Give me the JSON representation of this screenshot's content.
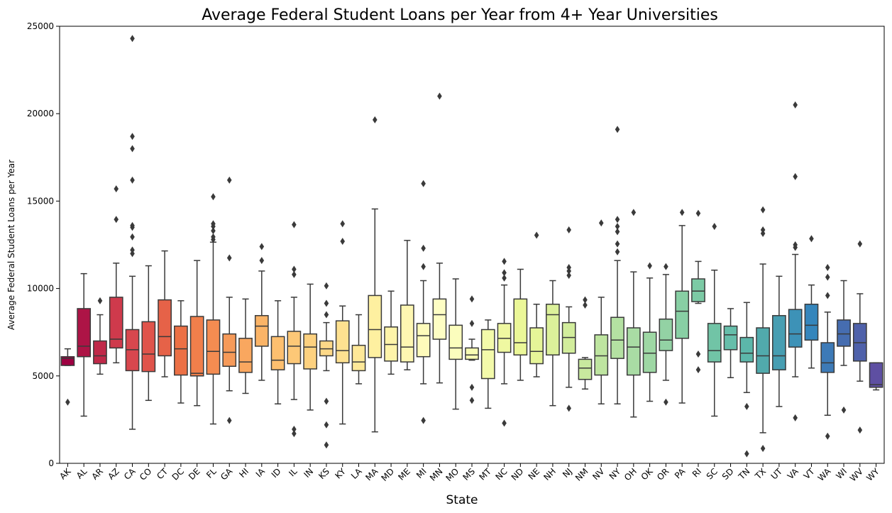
{
  "chart_data": {
    "type": "box",
    "title": "Average Federal Student Loans per Year from 4+ Year Universities",
    "xlabel": "State",
    "ylabel": "Average Federal Student Loans per Year",
    "ylim": [
      0,
      25000
    ],
    "yticks": [
      0,
      5000,
      10000,
      15000,
      20000,
      25000
    ],
    "palette": "Spectral",
    "categories": [
      "AK",
      "AL",
      "AR",
      "AZ",
      "CA",
      "CO",
      "CT",
      "DC",
      "DE",
      "FL",
      "GA",
      "HI",
      "IA",
      "ID",
      "IL",
      "IN",
      "KS",
      "KY",
      "LA",
      "MA",
      "MD",
      "ME",
      "MI",
      "MN",
      "MO",
      "MS",
      "MT",
      "NC",
      "ND",
      "NE",
      "NH",
      "NJ",
      "NM",
      "NV",
      "NY",
      "OH",
      "OK",
      "OR",
      "PA",
      "RI",
      "SC",
      "SD",
      "TN",
      "TX",
      "UT",
      "VA",
      "VT",
      "WA",
      "WI",
      "WV",
      "WY"
    ],
    "boxes": [
      {
        "state": "AK",
        "color": "#9e0142",
        "whislo": 5600,
        "q1": 5600,
        "med": 6000,
        "q3": 6100,
        "whishi": 6550,
        "fliers": [
          3500
        ]
      },
      {
        "state": "AL",
        "color": "#ad1446",
        "whislo": 2700,
        "q1": 6100,
        "med": 6700,
        "q3": 8850,
        "whishi": 10850,
        "fliers": []
      },
      {
        "state": "AR",
        "color": "#c02949",
        "whislo": 5100,
        "q1": 5700,
        "med": 6150,
        "q3": 7000,
        "whishi": 8500,
        "fliers": [
          9300
        ]
      },
      {
        "state": "AZ",
        "color": "#cf3a4c",
        "whislo": 5750,
        "q1": 6600,
        "med": 7100,
        "q3": 9500,
        "whishi": 11450,
        "fliers": [
          13950,
          15700
        ]
      },
      {
        "state": "CA",
        "color": "#d8474e",
        "whislo": 1950,
        "q1": 5300,
        "med": 6500,
        "q3": 7650,
        "whishi": 10700,
        "fliers": [
          12000,
          12200,
          12950,
          13500,
          13600,
          16200,
          18000,
          18700,
          24300
        ]
      },
      {
        "state": "CO",
        "color": "#e0544b",
        "whislo": 3600,
        "q1": 5250,
        "med": 6250,
        "q3": 8100,
        "whishi": 11300,
        "fliers": []
      },
      {
        "state": "CT",
        "color": "#e66248",
        "whislo": 4950,
        "q1": 6150,
        "med": 7250,
        "q3": 9350,
        "whishi": 12150,
        "fliers": []
      },
      {
        "state": "DC",
        "color": "#ec7045",
        "whislo": 3450,
        "q1": 5050,
        "med": 6550,
        "q3": 7850,
        "whishi": 9300,
        "fliers": []
      },
      {
        "state": "DE",
        "color": "#f07f4b",
        "whislo": 3300,
        "q1": 5000,
        "med": 5150,
        "q3": 8400,
        "whishi": 11600,
        "fliers": []
      },
      {
        "state": "FL",
        "color": "#f48c51",
        "whislo": 2250,
        "q1": 5100,
        "med": 6400,
        "q3": 8200,
        "whishi": 12650,
        "fliers": [
          12800,
          12950,
          13300,
          13550,
          13700,
          15250
        ]
      },
      {
        "state": "GA",
        "color": "#f69a59",
        "whislo": 4150,
        "q1": 5550,
        "med": 6350,
        "q3": 7400,
        "whishi": 9500,
        "fliers": [
          2450,
          11750,
          16200
        ]
      },
      {
        "state": "HI",
        "color": "#f9a75f",
        "whislo": 4000,
        "q1": 5200,
        "med": 5800,
        "q3": 7150,
        "whishi": 9400,
        "fliers": []
      },
      {
        "state": "IA",
        "color": "#fbb467",
        "whislo": 4750,
        "q1": 6700,
        "med": 7850,
        "q3": 8450,
        "whishi": 11000,
        "fliers": [
          11600,
          12400
        ]
      },
      {
        "state": "ID",
        "color": "#fdbf6f",
        "whislo": 3400,
        "q1": 5350,
        "med": 5900,
        "q3": 7250,
        "whishi": 9300,
        "fliers": []
      },
      {
        "state": "IL",
        "color": "#fdc877",
        "whislo": 3650,
        "q1": 5700,
        "med": 6700,
        "q3": 7550,
        "whishi": 9500,
        "fliers": [
          1700,
          1950,
          10800,
          11100,
          13650
        ]
      },
      {
        "state": "IN",
        "color": "#fdd17f",
        "whislo": 3050,
        "q1": 5400,
        "med": 6650,
        "q3": 7400,
        "whishi": 10250,
        "fliers": []
      },
      {
        "state": "KS",
        "color": "#fdd988",
        "whislo": 5300,
        "q1": 6150,
        "med": 6550,
        "q3": 7000,
        "whishi": 8050,
        "fliers": [
          1050,
          2200,
          3550,
          8500,
          9150,
          10150
        ]
      },
      {
        "state": "KY",
        "color": "#fee190",
        "whislo": 2250,
        "q1": 5750,
        "med": 6450,
        "q3": 8150,
        "whishi": 9000,
        "fliers": [
          12700,
          13700
        ]
      },
      {
        "state": "LA",
        "color": "#fee898",
        "whislo": 4550,
        "q1": 5300,
        "med": 5800,
        "q3": 6750,
        "whishi": 8500,
        "fliers": []
      },
      {
        "state": "MA",
        "color": "#fef0a0",
        "whislo": 1800,
        "q1": 6050,
        "med": 7650,
        "q3": 9600,
        "whishi": 14550,
        "fliers": [
          19650
        ]
      },
      {
        "state": "MD",
        "color": "#fef4a9",
        "whislo": 5100,
        "q1": 5850,
        "med": 6800,
        "q3": 7800,
        "whishi": 9850,
        "fliers": []
      },
      {
        "state": "ME",
        "color": "#fef7b2",
        "whislo": 5350,
        "q1": 5800,
        "med": 6650,
        "q3": 9050,
        "whishi": 12750,
        "fliers": []
      },
      {
        "state": "MI",
        "color": "#fefbbb",
        "whislo": 4550,
        "q1": 6100,
        "med": 7300,
        "q3": 8000,
        "whishi": 10450,
        "fliers": [
          2450,
          11250,
          12300,
          16000
        ]
      },
      {
        "state": "MN",
        "color": "#fefec4",
        "whislo": 4600,
        "q1": 7100,
        "med": 8500,
        "q3": 9400,
        "whishi": 11450,
        "fliers": [
          21000
        ]
      },
      {
        "state": "MO",
        "color": "#fbfdbd",
        "whislo": 3100,
        "q1": 5950,
        "med": 6600,
        "q3": 7900,
        "whishi": 10550,
        "fliers": []
      },
      {
        "state": "MS",
        "color": "#f7fbb3",
        "whislo": 5900,
        "q1": 5950,
        "med": 6200,
        "q3": 6600,
        "whishi": 7100,
        "fliers": [
          3600,
          4350,
          8000,
          9400
        ]
      },
      {
        "state": "MT",
        "color": "#f3faaa",
        "whislo": 3150,
        "q1": 4850,
        "med": 6500,
        "q3": 7650,
        "whishi": 8200,
        "fliers": []
      },
      {
        "state": "NC",
        "color": "#eff8a1",
        "whislo": 4550,
        "q1": 6350,
        "med": 7150,
        "q3": 8000,
        "whishi": 10200,
        "fliers": [
          2300,
          10600,
          10900,
          11550
        ]
      },
      {
        "state": "ND",
        "color": "#ebf798",
        "whislo": 4750,
        "q1": 6200,
        "med": 6900,
        "q3": 9400,
        "whishi": 11100,
        "fliers": []
      },
      {
        "state": "NE",
        "color": "#e6f598",
        "whislo": 4950,
        "q1": 5700,
        "med": 6400,
        "q3": 7750,
        "whishi": 9100,
        "fliers": [
          13050
        ]
      },
      {
        "state": "NH",
        "color": "#dcf19a",
        "whislo": 3300,
        "q1": 6200,
        "med": 8500,
        "q3": 9100,
        "whishi": 10450,
        "fliers": []
      },
      {
        "state": "NJ",
        "color": "#d2ed9c",
        "whislo": 4350,
        "q1": 6300,
        "med": 7200,
        "q3": 8050,
        "whishi": 8950,
        "fliers": [
          3150,
          10750,
          11000,
          11200,
          13350
        ]
      },
      {
        "state": "NM",
        "color": "#c8e99e",
        "whislo": 4250,
        "q1": 4800,
        "med": 5450,
        "q3": 5950,
        "whishi": 6050,
        "fliers": [
          9050,
          9350
        ]
      },
      {
        "state": "NV",
        "color": "#bee5a0",
        "whislo": 3400,
        "q1": 5050,
        "med": 6150,
        "q3": 7350,
        "whishi": 9500,
        "fliers": [
          13750
        ]
      },
      {
        "state": "NY",
        "color": "#b4e1a2",
        "whislo": 3400,
        "q1": 6000,
        "med": 7050,
        "q3": 8350,
        "whishi": 11600,
        "fliers": [
          12100,
          12550,
          13250,
          13550,
          13950,
          19100
        ]
      },
      {
        "state": "OH",
        "color": "#a9dca4",
        "whislo": 2650,
        "q1": 5050,
        "med": 6650,
        "q3": 7750,
        "whishi": 10950,
        "fliers": [
          14350
        ]
      },
      {
        "state": "OK",
        "color": "#9ed7a4",
        "whislo": 3550,
        "q1": 5200,
        "med": 6300,
        "q3": 7500,
        "whishi": 10600,
        "fliers": [
          11300
        ]
      },
      {
        "state": "OR",
        "color": "#93d2a4",
        "whislo": 4750,
        "q1": 6450,
        "med": 7050,
        "q3": 8250,
        "whishi": 10800,
        "fliers": [
          3500,
          11250
        ]
      },
      {
        "state": "PA",
        "color": "#88cfa4",
        "whislo": 3450,
        "q1": 7150,
        "med": 8700,
        "q3": 9850,
        "whishi": 13600,
        "fliers": [
          14350
        ]
      },
      {
        "state": "RI",
        "color": "#7ccaa5",
        "whislo": 9150,
        "q1": 9250,
        "med": 9850,
        "q3": 10550,
        "whishi": 11550,
        "fliers": [
          5350,
          6250,
          14300
        ]
      },
      {
        "state": "SC",
        "color": "#71c4a6",
        "whislo": 2700,
        "q1": 5800,
        "med": 6450,
        "q3": 8000,
        "whishi": 11050,
        "fliers": [
          13550
        ]
      },
      {
        "state": "SD",
        "color": "#66beaa",
        "whislo": 4900,
        "q1": 6500,
        "med": 7350,
        "q3": 7850,
        "whishi": 8850,
        "fliers": []
      },
      {
        "state": "TN",
        "color": "#5cb7aa",
        "whislo": 4050,
        "q1": 5800,
        "med": 6300,
        "q3": 7200,
        "whishi": 9200,
        "fliers": [
          550,
          3250
        ]
      },
      {
        "state": "TX",
        "color": "#51aaac",
        "whislo": 1750,
        "q1": 5150,
        "med": 6150,
        "q3": 7750,
        "whishi": 11400,
        "fliers": [
          850,
          13150,
          13350,
          14500
        ]
      },
      {
        "state": "UT",
        "color": "#479eb2",
        "whislo": 3250,
        "q1": 5350,
        "med": 6150,
        "q3": 8450,
        "whishi": 10700,
        "fliers": []
      },
      {
        "state": "VA",
        "color": "#3d92b7",
        "whislo": 4950,
        "q1": 6650,
        "med": 7400,
        "q3": 8800,
        "whishi": 11950,
        "fliers": [
          2600,
          12350,
          12500,
          16400,
          20500
        ]
      },
      {
        "state": "VT",
        "color": "#3586bc",
        "whislo": 5450,
        "q1": 7050,
        "med": 7900,
        "q3": 9100,
        "whishi": 10200,
        "fliers": [
          12850
        ]
      },
      {
        "state": "WA",
        "color": "#3d7ab7",
        "whislo": 2750,
        "q1": 5200,
        "med": 5750,
        "q3": 6900,
        "whishi": 8650,
        "fliers": [
          1550,
          9600,
          10650,
          11200
        ]
      },
      {
        "state": "WI",
        "color": "#466db0",
        "whislo": 5600,
        "q1": 6700,
        "med": 7400,
        "q3": 8200,
        "whishi": 10450,
        "fliers": [
          3050
        ]
      },
      {
        "state": "WV",
        "color": "#4f61aa",
        "whislo": 4700,
        "q1": 5850,
        "med": 6900,
        "q3": 8000,
        "whishi": 9700,
        "fliers": [
          1900,
          12550
        ]
      },
      {
        "state": "WY",
        "color": "#5e4fa2",
        "whislo": 4200,
        "q1": 4350,
        "med": 4500,
        "q3": 5750,
        "whishi": 5750,
        "fliers": []
      }
    ]
  }
}
